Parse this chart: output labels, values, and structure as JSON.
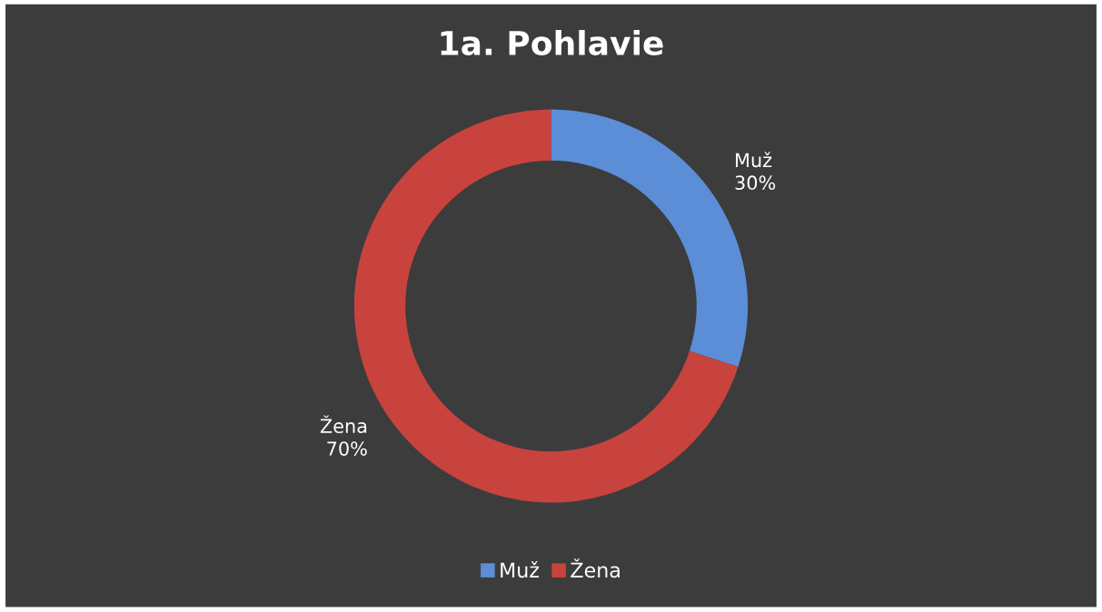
{
  "chart_data": {
    "type": "donut",
    "title": "1a. Pohlavie",
    "categories": [
      "Muž",
      "Žena"
    ],
    "values": [
      30,
      70
    ],
    "colors": [
      "#5b8ed6",
      "#c8433e"
    ],
    "value_labels": [
      "30%",
      "70%"
    ],
    "legend": "bottom"
  }
}
